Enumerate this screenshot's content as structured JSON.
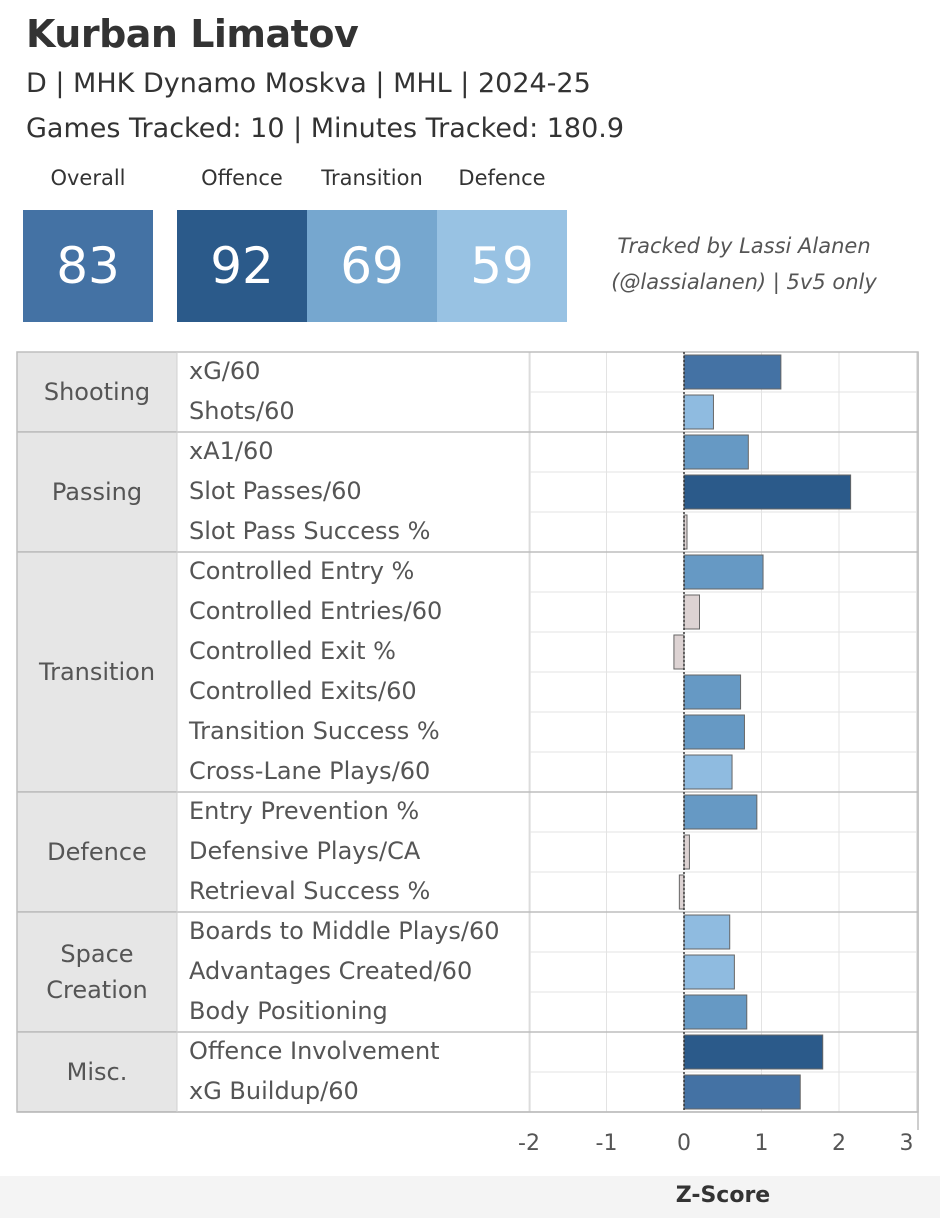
{
  "player": {
    "name": "Kurban Limatov",
    "info": "D | MHK Dynamo Moskva | MHL | 2024-25",
    "tracked": "Games Tracked: 10 | Minutes Tracked: 180.9"
  },
  "ratings": {
    "overall_label": "Overall",
    "overall": "83",
    "offence_label": "Offence",
    "offence": "92",
    "transition_label": "Transition",
    "transition": "69",
    "defence_label": "Defence",
    "defence": "59"
  },
  "credit": {
    "line1": "Tracked by Lassi Alanen",
    "line2": "(@lassialanen) | 5v5 only"
  },
  "colors": {
    "overall": "#4472a4",
    "offence": "#2b5a8a",
    "transition": "#76a7cf",
    "defence": "#98c2e3",
    "neutral_bar": "#ddd3d3"
  },
  "chart_data": {
    "type": "bar",
    "orientation": "horizontal",
    "xlabel": "Z-Score",
    "xlim": [
      -2,
      3
    ],
    "xticks": [
      -2,
      -1,
      0,
      1,
      2,
      3
    ],
    "groups": [
      {
        "name": "Shooting",
        "metrics": [
          {
            "label": "xG/60",
            "value": 1.25
          },
          {
            "label": "Shots/60",
            "value": 0.38
          }
        ]
      },
      {
        "name": "Passing",
        "metrics": [
          {
            "label": "xA1/60",
            "value": 0.83
          },
          {
            "label": "Slot Passes/60",
            "value": 2.15
          },
          {
            "label": "Slot Pass Success %",
            "value": 0.03
          }
        ]
      },
      {
        "name": "Transition",
        "metrics": [
          {
            "label": "Controlled Entry %",
            "value": 1.02
          },
          {
            "label": "Controlled Entries/60",
            "value": 0.2
          },
          {
            "label": "Controlled Exit %",
            "value": -0.13
          },
          {
            "label": "Controlled Exits/60",
            "value": 0.73
          },
          {
            "label": "Transition Success %",
            "value": 0.78
          },
          {
            "label": "Cross-Lane Plays/60",
            "value": 0.62
          }
        ]
      },
      {
        "name": "Defence",
        "metrics": [
          {
            "label": "Entry Prevention %",
            "value": 0.94
          },
          {
            "label": "Defensive Plays/CA",
            "value": 0.07
          },
          {
            "label": "Retrieval Success %",
            "value": -0.06
          }
        ]
      },
      {
        "name": "Space Creation",
        "metrics": [
          {
            "label": "Boards to Middle Plays/60",
            "value": 0.59
          },
          {
            "label": "Advantages Created/60",
            "value": 0.65
          },
          {
            "label": "Body Positioning",
            "value": 0.81
          }
        ]
      },
      {
        "name": "Misc.",
        "metrics": [
          {
            "label": "Offence Involvement",
            "value": 1.79
          },
          {
            "label": "xG Buildup/60",
            "value": 1.5
          }
        ]
      }
    ]
  }
}
